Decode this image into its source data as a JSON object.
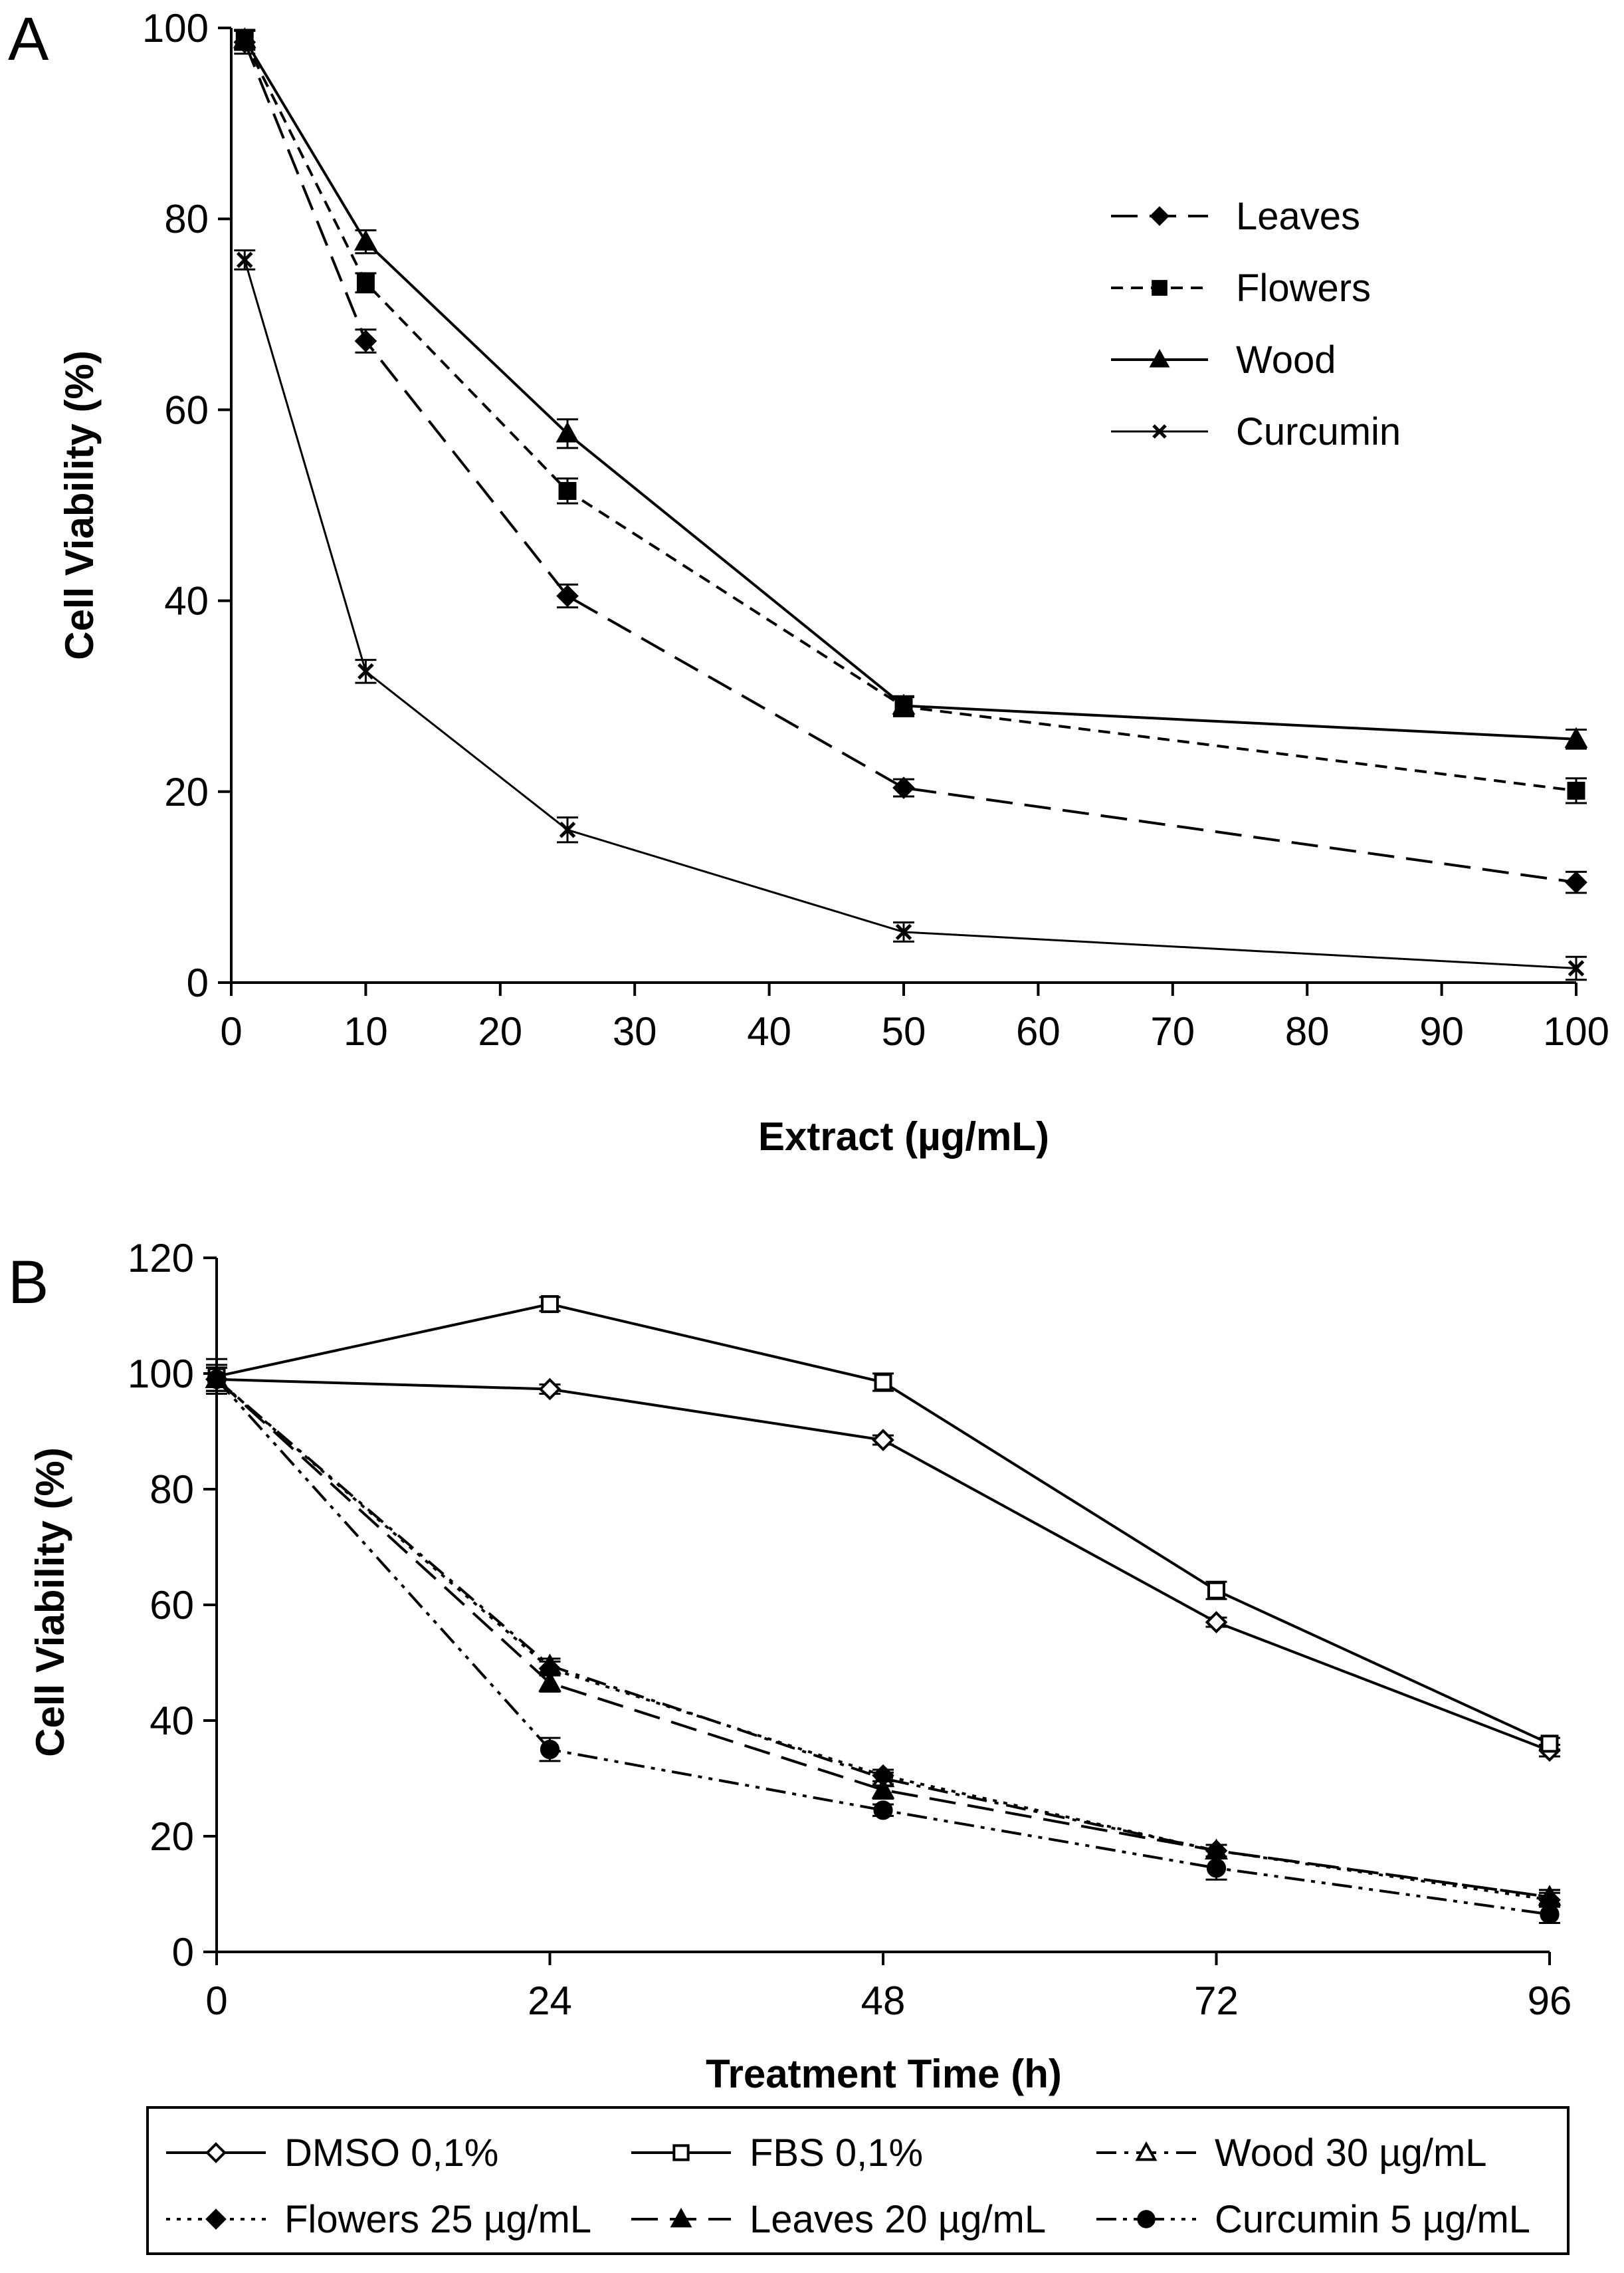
{
  "chart_data": [
    {
      "panel": "A",
      "type": "line",
      "xlabel": "Extract (µg/mL)",
      "ylabel": "Cell Viability (%)",
      "xlim": [
        0,
        100
      ],
      "ylim": [
        0,
        100
      ],
      "xticks": [
        0,
        10,
        20,
        30,
        40,
        50,
        60,
        70,
        80,
        90,
        100
      ],
      "yticks": [
        0,
        20,
        40,
        60,
        80,
        100
      ],
      "grid": false,
      "legend_position": "top-right",
      "x": [
        1,
        10,
        25,
        50,
        100
      ],
      "series": [
        {
          "name": "Leaves",
          "marker": "diamond",
          "dash": "long-dash",
          "values": [
            98.5,
            67.2,
            40.5,
            20.4,
            10.5
          ],
          "errors": [
            1.2,
            1.2,
            1.2,
            0.9,
            1.1
          ]
        },
        {
          "name": "Flowers",
          "marker": "square",
          "dash": "short-dash",
          "values": [
            98.7,
            73.3,
            51.5,
            28.9,
            20.1
          ],
          "errors": [
            1.0,
            1.0,
            1.3,
            1.0,
            1.3
          ]
        },
        {
          "name": "Wood",
          "marker": "triangle",
          "dash": "solid",
          "values": [
            98.8,
            77.6,
            57.5,
            29.0,
            25.5
          ],
          "errors": [
            1.0,
            1.2,
            1.5,
            1.0,
            1.0
          ]
        },
        {
          "name": "Curcumin",
          "marker": "cross",
          "dash": "solid-thin",
          "values": [
            75.7,
            32.6,
            16.0,
            5.3,
            1.5
          ],
          "errors": [
            1.0,
            1.2,
            1.3,
            1.0,
            1.2
          ]
        }
      ]
    },
    {
      "panel": "B",
      "type": "line",
      "xlabel": "Treatment Time (h)",
      "ylabel": "Cell Viability (%)",
      "xlim": [
        0,
        96
      ],
      "ylim": [
        0,
        120
      ],
      "xticks": [
        0,
        24,
        48,
        72,
        96
      ],
      "yticks": [
        0,
        20,
        40,
        60,
        80,
        100,
        120
      ],
      "grid": false,
      "legend_position": "bottom",
      "x": [
        0,
        24,
        48,
        72,
        96
      ],
      "series": [
        {
          "name": "DMSO 0,1%",
          "marker": "diamond-open",
          "dash": "solid",
          "values": [
            99.0,
            97.3,
            88.5,
            57.0,
            34.8
          ],
          "errors": [
            2.5,
            0.8,
            0.8,
            0.8,
            1.0
          ]
        },
        {
          "name": "FBS 0,1%",
          "marker": "square-open",
          "dash": "solid",
          "values": [
            99.5,
            112.0,
            98.5,
            62.5,
            36.0
          ],
          "errors": [
            3.0,
            1.2,
            1.5,
            1.5,
            1.0
          ]
        },
        {
          "name": "Wood 30 µg/mL",
          "marker": "triangle-open",
          "dash": "dash-dot",
          "values": [
            99.0,
            49.5,
            30.0,
            17.5,
            9.5
          ],
          "errors": [
            2.0,
            1.2,
            1.0,
            1.0,
            1.2
          ]
        },
        {
          "name": "Flowers 25 µg/mL",
          "marker": "diamond",
          "dash": "dot",
          "values": [
            99.0,
            49.0,
            30.5,
            17.5,
            9.0
          ],
          "errors": [
            2.0,
            1.2,
            1.0,
            1.0,
            1.2
          ]
        },
        {
          "name": "Leaves 20 µg/mL",
          "marker": "triangle",
          "dash": "long-dash",
          "values": [
            99.0,
            46.5,
            28.0,
            17.5,
            9.5
          ],
          "errors": [
            2.0,
            1.5,
            1.5,
            1.0,
            1.2
          ]
        },
        {
          "name": "Curcumin 5 µg/mL",
          "marker": "circle",
          "dash": "dash-dot-dot",
          "values": [
            99.0,
            35.0,
            24.5,
            14.5,
            6.5
          ],
          "errors": [
            2.0,
            2.0,
            1.0,
            2.0,
            1.5
          ]
        }
      ]
    }
  ]
}
